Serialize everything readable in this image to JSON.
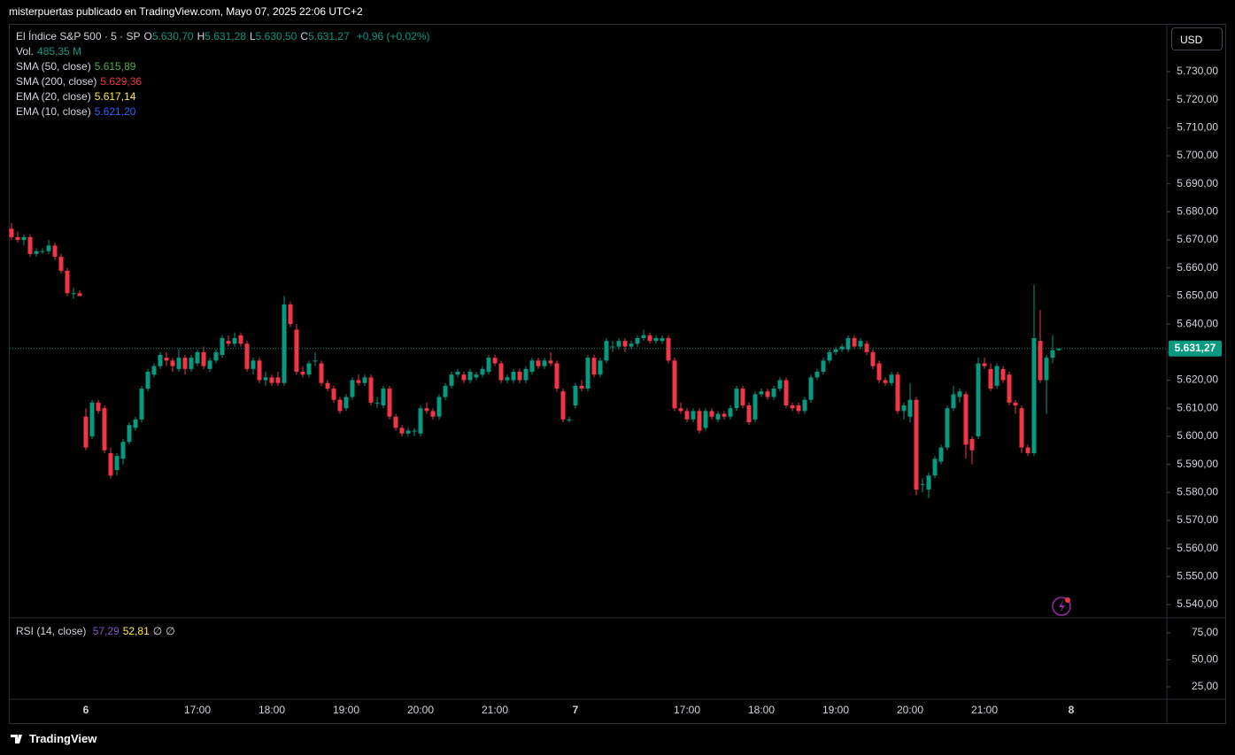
{
  "header": "misterpuertas publicado en TradingView.com, Mayo 07, 2025 22:06 UTC+2",
  "footer": "TradingView",
  "chart_data": {
    "type": "candlestick",
    "symbol": "El Índice S&P 500 · 5 · SP",
    "ohlc_legend": [
      {
        "key": "O",
        "value": "5.630,70"
      },
      {
        "key": "H",
        "value": "5.631,28"
      },
      {
        "key": "L",
        "value": "5.630,50"
      },
      {
        "key": "C",
        "value": "5.631,27"
      }
    ],
    "change": "+0,96 (+0,02%)",
    "volume": {
      "name": "Vol.",
      "value": "485,35 M"
    },
    "indicators": [
      {
        "name": "SMA (50, close)",
        "value": "5.615,89",
        "color": "#4caf50"
      },
      {
        "name": "SMA (200, close)",
        "value": "5.629,36",
        "color": "#f23645"
      },
      {
        "name": "EMA (20, close)",
        "value": "5.617,14",
        "color": "#ffeb3b"
      },
      {
        "name": "EMA (10, close)",
        "value": "5.621,20",
        "color": "#2962ff"
      }
    ],
    "currency": "USD",
    "up_color": "#089981",
    "down_color": "#f23645",
    "last_price": {
      "value": 5631.27,
      "label": "5.631,27"
    },
    "ylim": [
      5535.6,
      5746.7
    ],
    "yticks": [
      {
        "value": 5540,
        "label": "5.540,00"
      },
      {
        "value": 5550,
        "label": "5.550,00"
      },
      {
        "value": 5560,
        "label": "5.560,00"
      },
      {
        "value": 5570,
        "label": "5.570,00"
      },
      {
        "value": 5580,
        "label": "5.580,00"
      },
      {
        "value": 5590,
        "label": "5.590,00"
      },
      {
        "value": 5600,
        "label": "5.600,00"
      },
      {
        "value": 5610,
        "label": "5.610,00"
      },
      {
        "value": 5620,
        "label": "5.620,00"
      },
      {
        "value": 5630,
        "label": "5.630,00"
      },
      {
        "value": 5640,
        "label": "5.640,00"
      },
      {
        "value": 5650,
        "label": "5.650,00"
      },
      {
        "value": 5660,
        "label": "5.660,00"
      },
      {
        "value": 5670,
        "label": "5.670,00"
      },
      {
        "value": 5680,
        "label": "5.680,00"
      },
      {
        "value": 5690,
        "label": "5.690,00"
      },
      {
        "value": 5700,
        "label": "5.700,00"
      },
      {
        "value": 5710,
        "label": "5.710,00"
      },
      {
        "value": 5720,
        "label": "5.720,00"
      },
      {
        "value": 5730,
        "label": "5.730,00"
      }
    ],
    "rsi": {
      "name": "RSI (14, close)",
      "values": [
        {
          "value": "57,29",
          "color": "#7e57c2"
        },
        {
          "value": "52,81",
          "color": "#ffeb3b"
        },
        {
          "value": "∅",
          "color": "#d1d4dc"
        },
        {
          "value": "∅",
          "color": "#d1d4dc"
        }
      ],
      "ylim": [
        13.5,
        88.9
      ],
      "yticks": [
        {
          "value": 25,
          "label": "25,00"
        },
        {
          "value": 50,
          "label": "50,00"
        },
        {
          "value": 75,
          "label": "75,00"
        }
      ]
    },
    "categories": [
      null,
      null,
      null,
      null,
      null,
      null,
      null,
      null,
      null,
      null,
      null,
      null,
      "6",
      null,
      null,
      null,
      null,
      null,
      null,
      null,
      null,
      null,
      null,
      null,
      null,
      null,
      null,
      null,
      null,
      null,
      "17:00",
      null,
      null,
      null,
      null,
      null,
      null,
      null,
      null,
      null,
      null,
      null,
      "18:00",
      null,
      null,
      null,
      null,
      null,
      null,
      null,
      null,
      null,
      null,
      null,
      "19:00",
      null,
      null,
      null,
      null,
      null,
      null,
      null,
      null,
      null,
      null,
      null,
      "20:00",
      null,
      null,
      null,
      null,
      null,
      null,
      null,
      null,
      null,
      null,
      null,
      "21:00",
      null,
      null,
      null,
      null,
      null,
      null,
      null,
      null,
      null,
      null,
      null,
      null,
      "7",
      null,
      null,
      null,
      null,
      null,
      null,
      null,
      null,
      null,
      null,
      null,
      null,
      null,
      null,
      null,
      null,
      null,
      "17:00",
      null,
      null,
      null,
      null,
      null,
      null,
      null,
      null,
      null,
      null,
      null,
      "18:00",
      null,
      null,
      null,
      null,
      null,
      null,
      null,
      null,
      null,
      null,
      null,
      "19:00",
      null,
      null,
      null,
      null,
      null,
      null,
      null,
      null,
      null,
      null,
      null,
      "20:00",
      null,
      null,
      null,
      null,
      null,
      null,
      null,
      null,
      null,
      null,
      null,
      "21:00",
      null,
      null,
      null,
      null,
      null,
      null,
      null,
      null,
      null,
      null,
      null,
      null,
      null,
      "8"
    ],
    "ohlc": [
      [
        5674,
        5676,
        5670,
        5671
      ],
      [
        5671,
        5673,
        5669,
        5670
      ],
      [
        5670,
        5672,
        5668,
        5671
      ],
      [
        5671,
        5672,
        5664,
        5665
      ],
      [
        5665,
        5667,
        5664,
        5666
      ],
      [
        5666,
        5667,
        5665,
        5666
      ],
      [
        5666,
        5670,
        5665,
        5668
      ],
      [
        5668,
        5669,
        5663,
        5664
      ],
      [
        5664,
        5665,
        5658,
        5659
      ],
      [
        5659,
        5660,
        5650,
        5651
      ],
      [
        5651,
        5653,
        5649,
        5651
      ],
      [
        5651,
        5652,
        5650,
        5650
      ],
      [
        5607,
        5610,
        5595,
        5596
      ],
      [
        5600,
        5613,
        5599,
        5612
      ],
      [
        5612,
        5613,
        5608,
        5609
      ],
      [
        5610,
        5611,
        5594,
        5595
      ],
      [
        5594,
        5596,
        5585,
        5586
      ],
      [
        5588,
        5594,
        5586,
        5593
      ],
      [
        5592,
        5599,
        5590,
        5598
      ],
      [
        5598,
        5605,
        5597,
        5604
      ],
      [
        5603,
        5607,
        5602,
        5606
      ],
      [
        5606,
        5618,
        5605,
        5617
      ],
      [
        5617,
        5624,
        5616,
        5623
      ],
      [
        5622,
        5626,
        5621,
        5625
      ],
      [
        5625,
        5630,
        5624,
        5629
      ],
      [
        5628,
        5630,
        5625,
        5627
      ],
      [
        5627,
        5628,
        5623,
        5625
      ],
      [
        5624,
        5631,
        5623,
        5628
      ],
      [
        5628,
        5629,
        5622,
        5624
      ],
      [
        5624,
        5629,
        5623,
        5628
      ],
      [
        5626,
        5631,
        5625,
        5630
      ],
      [
        5630,
        5632,
        5624,
        5625
      ],
      [
        5624,
        5628,
        5623,
        5627
      ],
      [
        5627,
        5631,
        5626,
        5630
      ],
      [
        5629,
        5636,
        5628,
        5635
      ],
      [
        5634,
        5636,
        5632,
        5633
      ],
      [
        5633,
        5637,
        5632,
        5635
      ],
      [
        5636,
        5637,
        5632,
        5633
      ],
      [
        5633,
        5634,
        5623,
        5624
      ],
      [
        5624,
        5628,
        5622,
        5627
      ],
      [
        5627,
        5628,
        5619,
        5620
      ],
      [
        5620,
        5623,
        5618,
        5621
      ],
      [
        5621,
        5622,
        5618,
        5619
      ],
      [
        5621,
        5623,
        5618,
        5619
      ],
      [
        5619,
        5650,
        5618,
        5647
      ],
      [
        5647,
        5648,
        5639,
        5640
      ],
      [
        5638,
        5640,
        5622,
        5623
      ],
      [
        5623,
        5625,
        5621,
        5622
      ],
      [
        5622,
        5627,
        5621,
        5626
      ],
      [
        5627,
        5630,
        5625,
        5627
      ],
      [
        5626,
        5627,
        5618,
        5619
      ],
      [
        5619,
        5620,
        5616,
        5617
      ],
      [
        5617,
        5618,
        5612,
        5613
      ],
      [
        5613,
        5614,
        5608,
        5609
      ],
      [
        5610,
        5615,
        5609,
        5614
      ],
      [
        5614,
        5621,
        5613,
        5620
      ],
      [
        5620,
        5622,
        5618,
        5619
      ],
      [
        5619,
        5622,
        5618,
        5621
      ],
      [
        5621,
        5622,
        5611,
        5612
      ],
      [
        5612,
        5614,
        5610,
        5612
      ],
      [
        5611,
        5618,
        5610,
        5617
      ],
      [
        5617,
        5618,
        5606,
        5607
      ],
      [
        5607,
        5608,
        5602,
        5603
      ],
      [
        5603,
        5604,
        5600,
        5601
      ],
      [
        5601,
        5603,
        5600,
        5602
      ],
      [
        5602,
        5603,
        5600,
        5602
      ],
      [
        5601,
        5611,
        5600,
        5610
      ],
      [
        5610,
        5612,
        5608,
        5609
      ],
      [
        5609,
        5610,
        5606,
        5607
      ],
      [
        5607,
        5615,
        5606,
        5614
      ],
      [
        5614,
        5619,
        5613,
        5618
      ],
      [
        5618,
        5623,
        5617,
        5622
      ],
      [
        5622,
        5624,
        5621,
        5623
      ],
      [
        5622,
        5623,
        5619,
        5620
      ],
      [
        5620,
        5624,
        5619,
        5623
      ],
      [
        5621,
        5623,
        5620,
        5622
      ],
      [
        5622,
        5625,
        5621,
        5624
      ],
      [
        5623,
        5629,
        5622,
        5628
      ],
      [
        5628,
        5629,
        5625,
        5626
      ],
      [
        5626,
        5627,
        5619,
        5620
      ],
      [
        5620,
        5622,
        5619,
        5621
      ],
      [
        5620,
        5624,
        5619,
        5623
      ],
      [
        5623,
        5624,
        5619,
        5620
      ],
      [
        5620,
        5625,
        5619,
        5624
      ],
      [
        5623,
        5628,
        5622,
        5627
      ],
      [
        5627,
        5628,
        5624,
        5625
      ],
      [
        5625,
        5628,
        5624,
        5627
      ],
      [
        5627,
        5630,
        5625,
        5626
      ],
      [
        5626,
        5627,
        5616,
        5617
      ],
      [
        5616,
        5617,
        5605,
        5606
      ],
      [
        5606,
        5607,
        5605,
        5606
      ],
      [
        5611,
        5619,
        5610,
        5618
      ],
      [
        5618,
        5620,
        5616,
        5617
      ],
      [
        5617,
        5629,
        5616,
        5628
      ],
      [
        5628,
        5629,
        5621,
        5622
      ],
      [
        5622,
        5628,
        5621,
        5627
      ],
      [
        5627,
        5635,
        5626,
        5634
      ],
      [
        5632,
        5634,
        5630,
        5632
      ],
      [
        5632,
        5635,
        5631,
        5634
      ],
      [
        5634,
        5635,
        5630,
        5632
      ],
      [
        5632,
        5634,
        5631,
        5633
      ],
      [
        5633,
        5636,
        5632,
        5635
      ],
      [
        5635,
        5638,
        5634,
        5636
      ],
      [
        5636,
        5637,
        5633,
        5634
      ],
      [
        5634,
        5636,
        5633,
        5635
      ],
      [
        5634,
        5636,
        5633,
        5635
      ],
      [
        5635,
        5636,
        5626,
        5627
      ],
      [
        5627,
        5628,
        5609,
        5610
      ],
      [
        5610,
        5612,
        5608,
        5609
      ],
      [
        5609,
        5610,
        5605,
        5606
      ],
      [
        5606,
        5610,
        5605,
        5609
      ],
      [
        5609,
        5610,
        5601,
        5602
      ],
      [
        5603,
        5610,
        5602,
        5609
      ],
      [
        5609,
        5610,
        5606,
        5607
      ],
      [
        5606,
        5609,
        5605,
        5608
      ],
      [
        5608,
        5609,
        5606,
        5607
      ],
      [
        5607,
        5611,
        5606,
        5610
      ],
      [
        5610,
        5618,
        5609,
        5617
      ],
      [
        5617,
        5618,
        5610,
        5611
      ],
      [
        5611,
        5612,
        5604,
        5605
      ],
      [
        5606,
        5616,
        5605,
        5615
      ],
      [
        5615,
        5617,
        5614,
        5616
      ],
      [
        5616,
        5617,
        5613,
        5614
      ],
      [
        5614,
        5618,
        5613,
        5617
      ],
      [
        5617,
        5621,
        5616,
        5620
      ],
      [
        5620,
        5621,
        5610,
        5611
      ],
      [
        5611,
        5612,
        5609,
        5610
      ],
      [
        5611,
        5612,
        5608,
        5609
      ],
      [
        5609,
        5614,
        5608,
        5613
      ],
      [
        5613,
        5622,
        5612,
        5621
      ],
      [
        5621,
        5624,
        5620,
        5623
      ],
      [
        5623,
        5628,
        5622,
        5627
      ],
      [
        5627,
        5631,
        5626,
        5630
      ],
      [
        5630,
        5632,
        5629,
        5631
      ],
      [
        5631,
        5633,
        5630,
        5632
      ],
      [
        5631,
        5636,
        5630,
        5635
      ],
      [
        5635,
        5636,
        5631,
        5632
      ],
      [
        5632,
        5635,
        5631,
        5634
      ],
      [
        5633,
        5634,
        5629,
        5630
      ],
      [
        5630,
        5631,
        5624,
        5625
      ],
      [
        5626,
        5627,
        5619,
        5620
      ],
      [
        5620,
        5621,
        5618,
        5619
      ],
      [
        5619,
        5623,
        5618,
        5622
      ],
      [
        5622,
        5623,
        5608,
        5609
      ],
      [
        5609,
        5612,
        5606,
        5611
      ],
      [
        5607,
        5619,
        5605,
        5613
      ],
      [
        5613,
        5614,
        5579,
        5581
      ],
      [
        5583,
        5585,
        5580,
        5583
      ],
      [
        5581,
        5587,
        5578,
        5586
      ],
      [
        5586,
        5593,
        5585,
        5592
      ],
      [
        5591,
        5597,
        5590,
        5596
      ],
      [
        5596,
        5611,
        5595,
        5610
      ],
      [
        5610,
        5618,
        5609,
        5615
      ],
      [
        5614,
        5617,
        5612,
        5616
      ],
      [
        5615,
        5616,
        5592,
        5597
      ],
      [
        5599,
        5600,
        5590,
        5595
      ],
      [
        5600,
        5628,
        5599,
        5626
      ],
      [
        5626,
        5628,
        5624,
        5625
      ],
      [
        5624,
        5626,
        5616,
        5617
      ],
      [
        5618,
        5626,
        5617,
        5625
      ],
      [
        5624,
        5625,
        5619,
        5620
      ],
      [
        5622,
        5623,
        5611,
        5612
      ],
      [
        5612,
        5613,
        5608,
        5611
      ],
      [
        5610,
        5611,
        5594,
        5596
      ],
      [
        5596,
        5597,
        5593,
        5594
      ],
      [
        5594,
        5654,
        5593,
        5635
      ],
      [
        5634,
        5645,
        5619,
        5620
      ],
      [
        5620,
        5629,
        5608,
        5628
      ],
      [
        5628,
        5636,
        5626,
        5630.7
      ],
      [
        5630.7,
        5631.28,
        5630.5,
        5631.27
      ],
      null,
      null
    ]
  }
}
